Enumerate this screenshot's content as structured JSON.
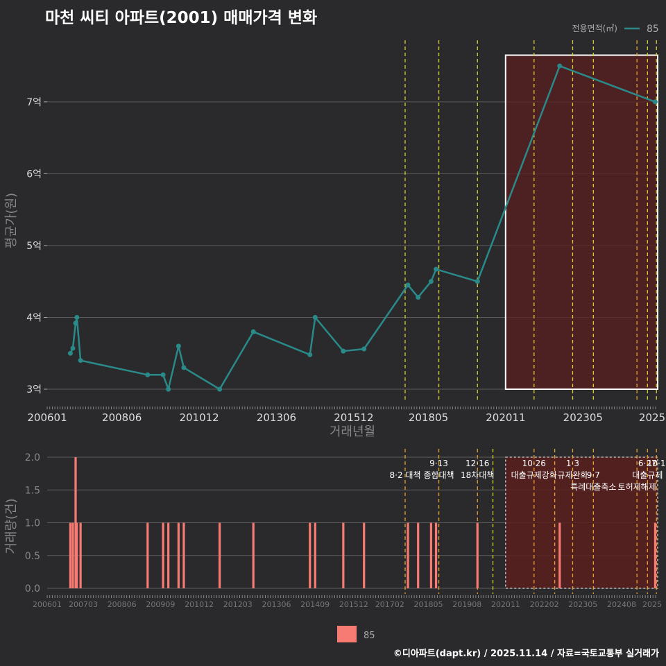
{
  "title": "마천 씨티 아파트(2001) 매매가격 변화",
  "credit": "©디아파트(dapt.kr) / 2025.11.14 / 자료=국토교통부 실거래가",
  "colors": {
    "price_line": "#2a8a8a",
    "volume_bar": "#f77b72",
    "highlight_fill": "#5a1f1f",
    "vline_yellow": "#d4d42a",
    "vline_orange": "#e8a22a"
  },
  "chart_data": [
    {
      "type": "line",
      "title": "마천 씨티 아파트(2001) 매매가격 변화",
      "xlabel": "거래년월",
      "ylabel": "평균가(원)",
      "legend": {
        "title": "전용면적(㎡)",
        "entries": [
          "85"
        ],
        "position": "top-right"
      },
      "xlim": [
        2006.0,
        2025.75
      ],
      "ylim": [
        3,
        7.8
      ],
      "x_ticks": [
        2006.0,
        2008.417,
        2010.917,
        2013.417,
        2015.917,
        2018.333,
        2020.833,
        2023.333,
        2025.833
      ],
      "x_tick_labels": [
        "200601",
        "200806",
        "201012",
        "201306",
        "201512",
        "201805",
        "202011",
        "202305",
        "2025"
      ],
      "y_ticks": [
        3,
        4,
        5,
        6,
        7
      ],
      "y_tick_labels": [
        "3억",
        "4억",
        "5억",
        "6억",
        "7억"
      ],
      "series": [
        {
          "name": "85",
          "x": [
            2006.75,
            2006.83,
            2006.92,
            2006.96,
            2007.08,
            2009.25,
            2009.75,
            2009.92,
            2010.25,
            2010.42,
            2011.58,
            2012.67,
            2014.5,
            2014.67,
            2015.58,
            2016.25,
            2017.67,
            2018.0,
            2018.42,
            2018.58,
            2019.92,
            2022.58,
            2025.67
          ],
          "y": [
            3.5,
            3.57,
            3.92,
            4.0,
            3.4,
            3.2,
            3.2,
            3.0,
            3.6,
            3.3,
            3.0,
            3.8,
            3.48,
            4.0,
            3.53,
            3.56,
            4.45,
            4.28,
            4.5,
            4.67,
            4.5,
            7.5,
            7.0
          ]
        }
      ],
      "highlight_box": {
        "x": [
          2020.83,
          2025.75
        ],
        "y": [
          3.0,
          7.65
        ]
      },
      "vlines": [
        {
          "x": 2017.58,
          "color": "yellow"
        },
        {
          "x": 2018.67,
          "color": "yellow"
        },
        {
          "x": 2019.92,
          "color": "yellow"
        },
        {
          "x": 2021.75,
          "color": "yellow"
        },
        {
          "x": 2023.0,
          "color": "yellow"
        },
        {
          "x": 2023.67,
          "color": "yellow"
        },
        {
          "x": 2025.08,
          "color": "orange"
        },
        {
          "x": 2025.42,
          "color": "yellow"
        },
        {
          "x": 2025.71,
          "color": "yellow"
        }
      ]
    },
    {
      "type": "bar",
      "xlabel": "",
      "ylabel": "거래량(건)",
      "legend": {
        "entries": [
          "85"
        ],
        "position": "bottom"
      },
      "xlim": [
        2006.0,
        2025.75
      ],
      "ylim": [
        0,
        2
      ],
      "x_ticks": [
        2006.0,
        2007.167,
        2008.417,
        2009.667,
        2010.917,
        2012.167,
        2013.417,
        2014.667,
        2015.917,
        2017.083,
        2018.333,
        2019.583,
        2020.833,
        2022.083,
        2023.333,
        2024.583,
        2025.833
      ],
      "x_tick_labels": [
        "200601",
        "200703",
        "200806",
        "200909",
        "201012",
        "201203",
        "201306",
        "201409",
        "201512",
        "201702",
        "201805",
        "201908",
        "202011",
        "202202",
        "202305",
        "202408",
        "2025"
      ],
      "y_ticks": [
        0,
        0.5,
        1,
        1.5,
        2
      ],
      "y_tick_labels": [
        "0.0",
        "0.5",
        "1.0",
        "1.5",
        "2.0"
      ],
      "series": [
        {
          "name": "85",
          "x": [
            2006.75,
            2006.83,
            2006.92,
            2006.96,
            2007.08,
            2009.25,
            2009.75,
            2009.92,
            2010.25,
            2010.42,
            2011.58,
            2012.67,
            2014.5,
            2014.67,
            2015.58,
            2016.25,
            2017.67,
            2018.0,
            2018.42,
            2018.58,
            2019.92,
            2022.58,
            2025.67
          ],
          "values": [
            1,
            1,
            2,
            1,
            1,
            1,
            1,
            1,
            1,
            1,
            1,
            1,
            1,
            1,
            1,
            1,
            1,
            1,
            1,
            1,
            1,
            1,
            1
          ]
        }
      ],
      "highlight_box": {
        "x": [
          2020.83,
          2025.75
        ],
        "y": [
          0,
          2
        ]
      },
      "vlines": [
        {
          "x": 2017.58,
          "color": "orange"
        },
        {
          "x": 2018.67,
          "color": "orange"
        },
        {
          "x": 2019.92,
          "color": "orange"
        },
        {
          "x": 2020.42,
          "color": "yellow"
        },
        {
          "x": 2021.75,
          "color": "orange"
        },
        {
          "x": 2022.42,
          "color": "orange"
        },
        {
          "x": 2023.0,
          "color": "orange"
        },
        {
          "x": 2023.67,
          "color": "orange"
        },
        {
          "x": 2025.08,
          "color": "orange"
        },
        {
          "x": 2025.42,
          "color": "orange"
        },
        {
          "x": 2025.71,
          "color": "orange"
        }
      ],
      "annotations": [
        {
          "x": 2017.58,
          "row": 1,
          "text": "8·2 대책"
        },
        {
          "x": 2018.67,
          "row": 0,
          "text": "9·13"
        },
        {
          "x": 2018.67,
          "row": 1,
          "text": "종합대책"
        },
        {
          "x": 2019.92,
          "row": 0,
          "text": "12·16"
        },
        {
          "x": 2019.92,
          "row": 1,
          "text": "18차대책"
        },
        {
          "x": 2021.75,
          "row": 0,
          "text": "10·26"
        },
        {
          "x": 2021.75,
          "row": 1,
          "text": "대출규제강화"
        },
        {
          "x": 2023.0,
          "row": 0,
          "text": "1·3"
        },
        {
          "x": 2023.0,
          "row": 1,
          "text": "규제완화"
        },
        {
          "x": 2023.67,
          "row": 1,
          "text": "9·7"
        },
        {
          "x": 2023.67,
          "row": 2,
          "text": "특례대출축소"
        },
        {
          "x": 2025.08,
          "row": 2,
          "text": "토허제해제"
        },
        {
          "x": 2025.42,
          "row": 0,
          "text": "6·27"
        },
        {
          "x": 2025.42,
          "row": 1,
          "text": "대출규제"
        },
        {
          "x": 2025.71,
          "row": 0,
          "text": "10·1"
        }
      ]
    }
  ]
}
